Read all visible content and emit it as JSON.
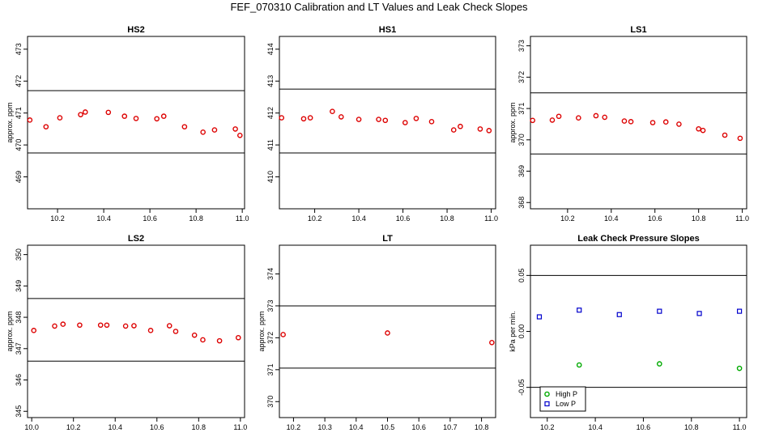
{
  "title": "FEF_070310  Calibration and LT Values and Leak Check Slopes",
  "chart_data": [
    {
      "id": "hs2",
      "type": "scatter",
      "title": "HS2",
      "ylabel": "approx. ppm",
      "xlim": [
        10.07,
        11.01
      ],
      "ylim": [
        468.0,
        473.4
      ],
      "xticks": [
        10.2,
        10.4,
        10.6,
        10.8,
        11.0
      ],
      "xticklabels": [
        "10.2",
        "10.4",
        "10.6",
        "10.8",
        "11.0"
      ],
      "yticks": [
        469,
        470,
        471,
        472,
        473
      ],
      "yticklabels": [
        "469",
        "470",
        "471",
        "472",
        "473"
      ],
      "hlines": [
        471.7,
        469.75
      ],
      "series": [
        {
          "color": "#dd0000",
          "marker": "circle",
          "x": [
            10.08,
            10.15,
            10.21,
            10.3,
            10.32,
            10.42,
            10.49,
            10.54,
            10.63,
            10.66,
            10.75,
            10.83,
            10.88,
            10.97,
            10.99
          ],
          "y": [
            470.78,
            470.57,
            470.85,
            470.95,
            471.03,
            471.02,
            470.9,
            470.83,
            470.82,
            470.9,
            470.57,
            470.4,
            470.47,
            470.5,
            470.3
          ]
        }
      ]
    },
    {
      "id": "hs1",
      "type": "scatter",
      "title": "HS1",
      "ylabel": "",
      "xlim": [
        10.04,
        11.02
      ],
      "ylim": [
        409.0,
        414.4
      ],
      "xticks": [
        10.2,
        10.4,
        10.6,
        10.8,
        11.0
      ],
      "xticklabels": [
        "10.2",
        "10.4",
        "10.6",
        "10.8",
        "11.0"
      ],
      "yticks": [
        410,
        411,
        412,
        413,
        414
      ],
      "yticklabels": [
        "410",
        "411",
        "412",
        "413",
        "414"
      ],
      "hlines": [
        412.75,
        410.75
      ],
      "series": [
        {
          "color": "#dd0000",
          "marker": "circle",
          "x": [
            10.05,
            10.15,
            10.18,
            10.28,
            10.32,
            10.4,
            10.49,
            10.52,
            10.61,
            10.66,
            10.73,
            10.83,
            10.86,
            10.95,
            10.99
          ],
          "y": [
            411.85,
            411.82,
            411.85,
            412.05,
            411.88,
            411.8,
            411.8,
            411.77,
            411.7,
            411.83,
            411.73,
            411.47,
            411.58,
            411.5,
            411.45
          ]
        }
      ]
    },
    {
      "id": "ls1",
      "type": "scatter",
      "title": "LS1",
      "ylabel": "approx. ppm",
      "xlim": [
        10.03,
        11.02
      ],
      "ylim": [
        367.8,
        373.3
      ],
      "xticks": [
        10.2,
        10.4,
        10.6,
        10.8,
        11.0
      ],
      "xticklabels": [
        "10.2",
        "10.4",
        "10.6",
        "10.8",
        "11.0"
      ],
      "yticks": [
        368,
        369,
        370,
        371,
        372,
        373
      ],
      "yticklabels": [
        "368",
        "369",
        "370",
        "371",
        "372",
        "373"
      ],
      "hlines": [
        371.5,
        369.55
      ],
      "series": [
        {
          "color": "#dd0000",
          "marker": "circle",
          "x": [
            10.04,
            10.13,
            10.16,
            10.25,
            10.33,
            10.37,
            10.46,
            10.49,
            10.59,
            10.65,
            10.71,
            10.8,
            10.82,
            10.92,
            10.99
          ],
          "y": [
            370.62,
            370.63,
            370.75,
            370.7,
            370.77,
            370.72,
            370.6,
            370.58,
            370.55,
            370.57,
            370.5,
            370.35,
            370.3,
            370.15,
            370.05
          ]
        }
      ]
    },
    {
      "id": "ls2",
      "type": "scatter",
      "title": "LS2",
      "ylabel": "approx. ppm",
      "xlim": [
        9.98,
        11.02
      ],
      "ylim": [
        344.8,
        350.3
      ],
      "xticks": [
        10.0,
        10.2,
        10.4,
        10.6,
        10.8,
        11.0
      ],
      "xticklabels": [
        "10.0",
        "10.2",
        "10.4",
        "10.6",
        "10.8",
        "11.0"
      ],
      "yticks": [
        345,
        346,
        347,
        348,
        349,
        350
      ],
      "yticklabels": [
        "345",
        "346",
        "347",
        "348",
        "349",
        "350"
      ],
      "hlines": [
        348.6,
        346.6
      ],
      "series": [
        {
          "color": "#dd0000",
          "marker": "circle",
          "x": [
            10.01,
            10.11,
            10.15,
            10.23,
            10.33,
            10.36,
            10.45,
            10.49,
            10.57,
            10.66,
            10.69,
            10.78,
            10.82,
            10.9,
            10.99
          ],
          "y": [
            347.58,
            347.72,
            347.78,
            347.75,
            347.75,
            347.75,
            347.72,
            347.73,
            347.58,
            347.73,
            347.55,
            347.43,
            347.28,
            347.25,
            347.35
          ]
        }
      ]
    },
    {
      "id": "lt",
      "type": "scatter",
      "title": "LT",
      "ylabel": "approx. ppm",
      "xlim": [
        10.155,
        10.845
      ],
      "ylim": [
        369.5,
        374.9
      ],
      "xticks": [
        10.2,
        10.3,
        10.4,
        10.5,
        10.6,
        10.7,
        10.8
      ],
      "xticklabels": [
        "10.2",
        "10.3",
        "10.4",
        "10.5",
        "10.6",
        "10.7",
        "10.8"
      ],
      "yticks": [
        370,
        371,
        372,
        373,
        374
      ],
      "yticklabels": [
        "370",
        "371",
        "372",
        "373",
        "374"
      ],
      "hlines": [
        373.0,
        371.05
      ],
      "series": [
        {
          "color": "#dd0000",
          "marker": "circle",
          "x": [
            10.167,
            10.5,
            10.833
          ],
          "y": [
            372.1,
            372.15,
            371.85
          ]
        }
      ]
    },
    {
      "id": "leak",
      "type": "scatter",
      "title": "Leak Check Pressure Slopes",
      "ylabel": "kPa per min.",
      "xlim": [
        10.13,
        11.03
      ],
      "ylim": [
        -0.077,
        0.077
      ],
      "xticks": [
        10.2,
        10.4,
        10.6,
        10.8,
        11.0
      ],
      "xticklabels": [
        "10.2",
        "10.4",
        "10.6",
        "10.8",
        "11.0"
      ],
      "yticks": [
        -0.05,
        0.0,
        0.05
      ],
      "yticklabels": [
        "-0.05",
        "0.00",
        "0.05"
      ],
      "hlines": [
        0.05,
        -0.05
      ],
      "legend": {
        "position": "bottom-left"
      },
      "series": [
        {
          "name": "High P",
          "color": "#00aa00",
          "marker": "circle",
          "x": [
            10.333,
            10.667,
            11.0
          ],
          "y": [
            -0.03,
            -0.029,
            -0.033
          ]
        },
        {
          "name": "Low P",
          "color": "#0000cc",
          "marker": "square",
          "x": [
            10.167,
            10.333,
            10.5,
            10.667,
            10.833,
            11.0
          ],
          "y": [
            0.013,
            0.019,
            0.015,
            0.018,
            0.016,
            0.018
          ]
        }
      ]
    }
  ]
}
